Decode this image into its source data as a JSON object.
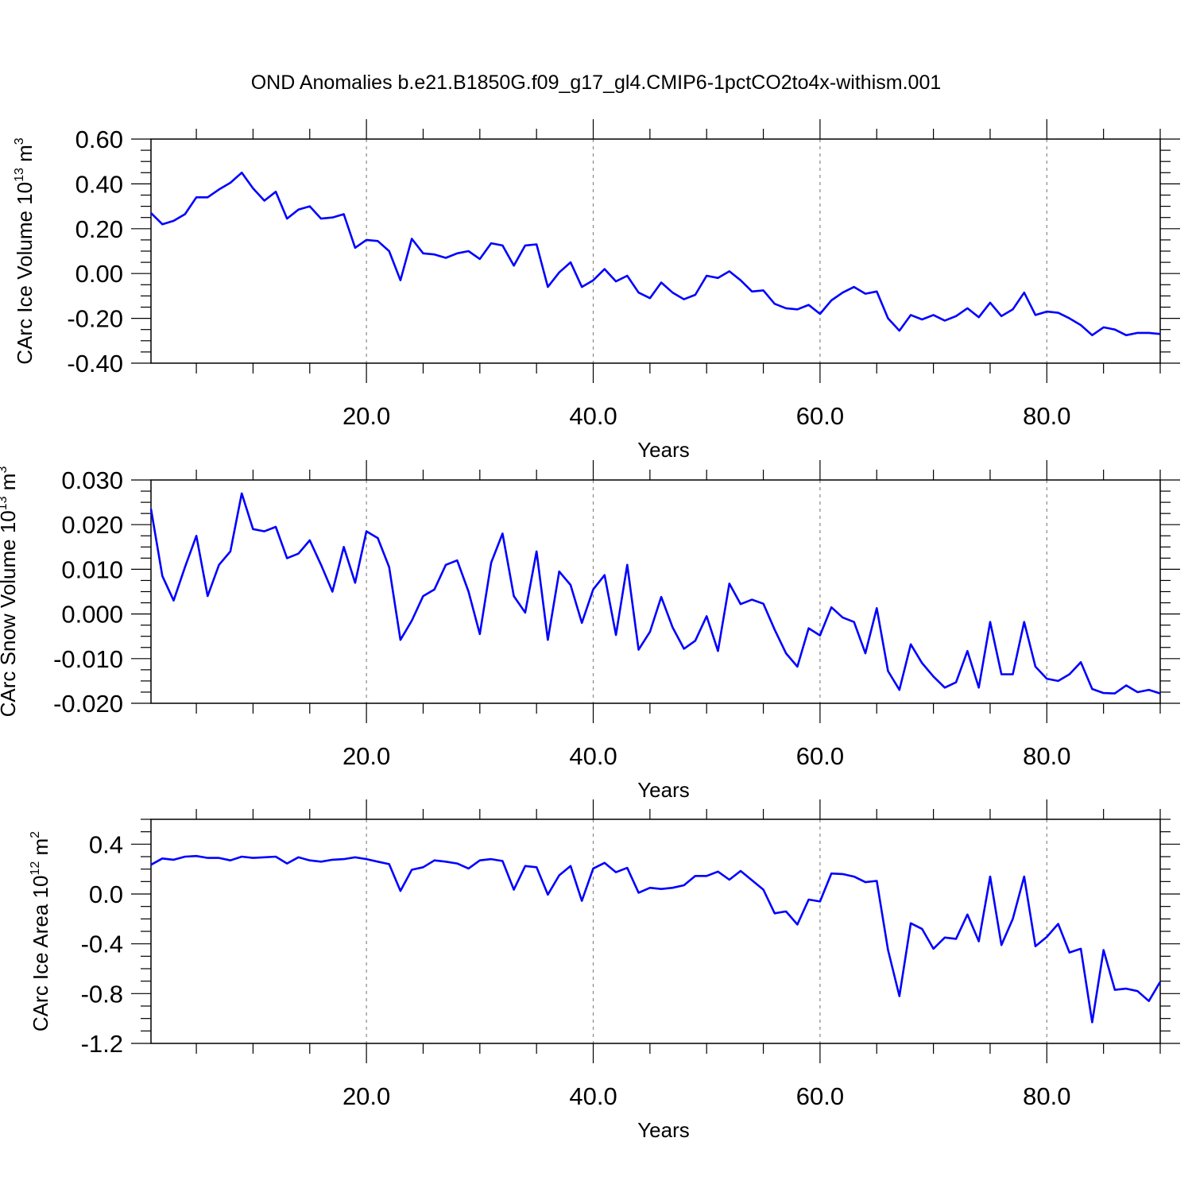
{
  "figure_title": "OND Anomalies b.e21.B1850G.f09_g17_gl4.CMIP6-1pctCO2to4x-withism.001",
  "colors": {
    "line": "#0000ff",
    "axis": "#000000",
    "grid": "#888888"
  },
  "chart_data": [
    {
      "type": "line",
      "title": "",
      "xlabel": "Years",
      "ylabel": {
        "prefix": "CArc Ice Volume 10",
        "exponent": "13",
        "unit": " m",
        "unit_exponent": "3"
      },
      "xlim": [
        1,
        90
      ],
      "ylim": [
        -0.4,
        0.6
      ],
      "x_ticks": [
        20,
        40,
        60,
        80
      ],
      "x_tick_labels": [
        "20.0",
        "40.0",
        "60.0",
        "80.0"
      ],
      "y_ticks": [
        -0.4,
        -0.2,
        0.0,
        0.2,
        0.4,
        0.6
      ],
      "y_tick_labels": [
        "-0.40",
        "-0.20",
        "0.00",
        "0.20",
        "0.40",
        "0.60"
      ],
      "y_minor_step": 0.05,
      "grid": "vertical dashed at major x ticks",
      "series": [
        {
          "x_start": 1,
          "x_step": 1,
          "values": [
            0.27,
            0.22,
            0.235,
            0.265,
            0.34,
            0.34,
            0.375,
            0.405,
            0.45,
            0.38,
            0.325,
            0.365,
            0.245,
            0.285,
            0.3,
            0.245,
            0.25,
            0.265,
            0.115,
            0.15,
            0.145,
            0.1,
            -0.03,
            0.155,
            0.09,
            0.085,
            0.07,
            0.09,
            0.1,
            0.065,
            0.135,
            0.125,
            0.035,
            0.125,
            0.13,
            -0.06,
            0.005,
            0.05,
            -0.06,
            -0.03,
            0.02,
            -0.035,
            -0.01,
            -0.085,
            -0.11,
            -0.04,
            -0.085,
            -0.115,
            -0.095,
            -0.01,
            -0.02,
            0.01,
            -0.03,
            -0.08,
            -0.075,
            -0.135,
            -0.155,
            -0.16,
            -0.14,
            -0.18,
            -0.12,
            -0.085,
            -0.06,
            -0.09,
            -0.08,
            -0.2,
            -0.255,
            -0.185,
            -0.205,
            -0.185,
            -0.21,
            -0.19,
            -0.155,
            -0.195,
            -0.13,
            -0.19,
            -0.16,
            -0.085,
            -0.185,
            -0.17,
            -0.175,
            -0.2,
            -0.23,
            -0.275,
            -0.24,
            -0.25,
            -0.275,
            -0.265,
            -0.265,
            -0.27
          ]
        }
      ]
    },
    {
      "type": "line",
      "title": "",
      "xlabel": "Years",
      "ylabel": {
        "prefix": "CArc Snow Volume 10",
        "exponent": "13",
        "unit": " m",
        "unit_exponent": "3"
      },
      "xlim": [
        1,
        90
      ],
      "ylim": [
        -0.02,
        0.03
      ],
      "x_ticks": [
        20,
        40,
        60,
        80
      ],
      "x_tick_labels": [
        "20.0",
        "40.0",
        "60.0",
        "80.0"
      ],
      "y_ticks": [
        -0.02,
        -0.01,
        0.0,
        0.01,
        0.02,
        0.03
      ],
      "y_tick_labels": [
        "-0.020",
        "-0.010",
        "0.000",
        "0.010",
        "0.020",
        "0.030"
      ],
      "y_minor_step": 0.0025,
      "grid": "vertical dashed at major x ticks",
      "series": [
        {
          "x_start": 1,
          "x_step": 1,
          "values": [
            0.0235,
            0.0085,
            0.003,
            0.0105,
            0.0175,
            0.004,
            0.011,
            0.014,
            0.027,
            0.019,
            0.0185,
            0.0195,
            0.0125,
            0.0135,
            0.0165,
            0.011,
            0.005,
            0.015,
            0.007,
            0.0185,
            0.017,
            0.0105,
            -0.0058,
            -0.0015,
            0.004,
            0.0055,
            0.011,
            0.012,
            0.005,
            -0.0045,
            0.0115,
            0.018,
            0.004,
            0.0003,
            0.014,
            -0.0058,
            0.0095,
            0.0065,
            -0.002,
            0.0055,
            0.0087,
            -0.0047,
            0.011,
            -0.008,
            -0.004,
            0.0038,
            -0.003,
            -0.0078,
            -0.006,
            -0.0005,
            -0.0083,
            0.0068,
            0.0022,
            0.0032,
            0.0023,
            -0.0035,
            -0.0088,
            -0.0118,
            -0.0032,
            -0.0048,
            0.0015,
            -0.0008,
            -0.0018,
            -0.0088,
            0.0013,
            -0.0128,
            -0.017,
            -0.0068,
            -0.011,
            -0.014,
            -0.0165,
            -0.0153,
            -0.0083,
            -0.0165,
            -0.0018,
            -0.0135,
            -0.0135,
            -0.0018,
            -0.0118,
            -0.0145,
            -0.015,
            -0.0135,
            -0.0108,
            -0.0168,
            -0.0177,
            -0.0178,
            -0.016,
            -0.0175,
            -0.017,
            -0.0178
          ]
        }
      ]
    },
    {
      "type": "line",
      "title": "",
      "xlabel": "Years",
      "ylabel": {
        "prefix": "CArc Ice Area 10",
        "exponent": "12",
        "unit": " m",
        "unit_exponent": "2"
      },
      "xlim": [
        1,
        90
      ],
      "ylim": [
        -1.2,
        0.6
      ],
      "x_ticks": [
        20,
        40,
        60,
        80
      ],
      "x_tick_labels": [
        "20.0",
        "40.0",
        "60.0",
        "80.0"
      ],
      "y_ticks": [
        -1.2,
        -0.8,
        -0.4,
        0.0,
        0.4
      ],
      "y_tick_labels": [
        "-1.2",
        "-0.8",
        "-0.4",
        "0.0",
        "0.4"
      ],
      "y_minor_step": 0.1,
      "grid": "vertical dashed at major x ticks",
      "series": [
        {
          "x_start": 1,
          "x_step": 1,
          "values": [
            0.235,
            0.285,
            0.275,
            0.3,
            0.305,
            0.29,
            0.29,
            0.27,
            0.3,
            0.29,
            0.295,
            0.3,
            0.245,
            0.295,
            0.27,
            0.26,
            0.275,
            0.28,
            0.295,
            0.28,
            0.26,
            0.24,
            0.025,
            0.195,
            0.215,
            0.27,
            0.26,
            0.245,
            0.205,
            0.27,
            0.28,
            0.265,
            0.035,
            0.225,
            0.215,
            -0.005,
            0.15,
            0.225,
            -0.055,
            0.205,
            0.25,
            0.175,
            0.21,
            0.01,
            0.05,
            0.04,
            0.05,
            0.07,
            0.145,
            0.145,
            0.18,
            0.115,
            0.185,
            0.11,
            0.035,
            -0.155,
            -0.14,
            -0.245,
            -0.045,
            -0.06,
            0.165,
            0.16,
            0.14,
            0.095,
            0.105,
            -0.45,
            -0.82,
            -0.235,
            -0.28,
            -0.44,
            -0.35,
            -0.36,
            -0.165,
            -0.38,
            0.14,
            -0.41,
            -0.2,
            0.14,
            -0.42,
            -0.345,
            -0.24,
            -0.47,
            -0.44,
            -1.03,
            -0.45,
            -0.77,
            -0.76,
            -0.78,
            -0.86,
            -0.705
          ]
        }
      ]
    }
  ]
}
